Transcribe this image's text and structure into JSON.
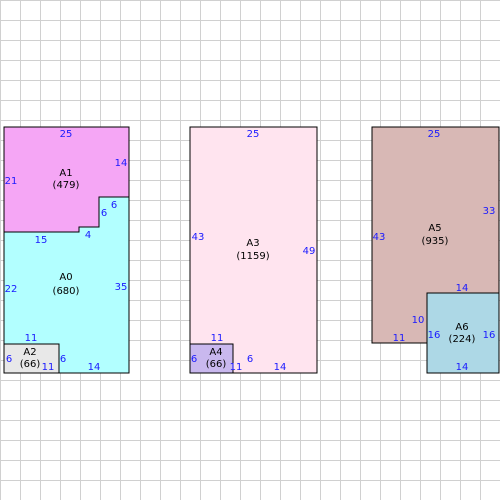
{
  "colors": {
    "grid": "#d0d0d0",
    "outline": "#000000",
    "dimension_text": "#1a1aff",
    "A0": "#b2ffff",
    "A1": "#f5a6f5",
    "A2": "#e8e8e8",
    "A3": "#ffe4ef",
    "A4": "#c9b8ee",
    "A5": "#d8b8b5",
    "A6": "#add8e6"
  },
  "areas": [
    {
      "id": "A0",
      "label": "A0",
      "value": "(680)"
    },
    {
      "id": "A1",
      "label": "A1",
      "value": "(479)"
    },
    {
      "id": "A2",
      "label": "A2",
      "value": "(66)"
    },
    {
      "id": "A3",
      "label": "A3",
      "value": "(1159)"
    },
    {
      "id": "A4",
      "label": "A4",
      "value": "(66)"
    },
    {
      "id": "A5",
      "label": "A5",
      "value": "(935)"
    },
    {
      "id": "A6",
      "label": "A6",
      "value": "(224)"
    }
  ],
  "dimensions": {
    "A1": [
      "25",
      "14",
      "21",
      "6",
      "6",
      "4"
    ],
    "A0": [
      "15",
      "22",
      "35",
      "11"
    ],
    "A2": [
      "6",
      "11",
      "6",
      "14"
    ],
    "A3": [
      "25",
      "43",
      "49"
    ],
    "A4": [
      "11",
      "6",
      "6",
      "11",
      "14"
    ],
    "A5": [
      "25",
      "43",
      "33",
      "11",
      "10"
    ],
    "A6": [
      "14",
      "16",
      "16",
      "14"
    ]
  }
}
